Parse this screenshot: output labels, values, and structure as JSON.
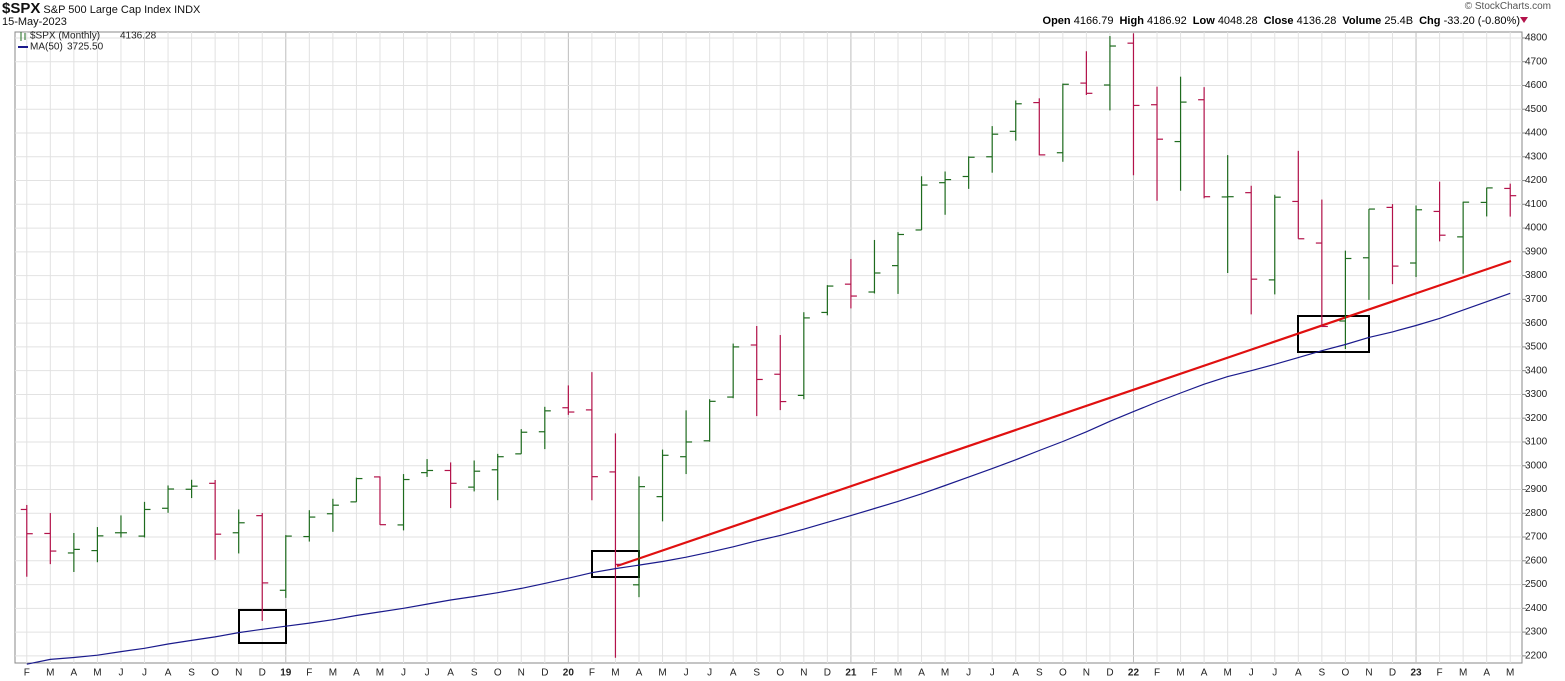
{
  "header": {
    "symbol": "$SPX",
    "name": "S&P 500 Large Cap Index",
    "exchange": "INDX",
    "date": "15-May-2023",
    "credit": "© StockCharts.com",
    "quote": [
      {
        "label": "Open",
        "value": "4166.79"
      },
      {
        "label": "High",
        "value": "4186.92"
      },
      {
        "label": "Low",
        "value": "4048.28"
      },
      {
        "label": "Close",
        "value": "4136.28"
      },
      {
        "label": "Volume",
        "value": "25.4B"
      },
      {
        "label": "Chg",
        "value": "-33.20 (-0.80%)"
      }
    ]
  },
  "chart_data": {
    "type": "ohlc",
    "categories": [
      "F",
      "M",
      "A",
      "M",
      "J",
      "J",
      "A",
      "S",
      "O",
      "N",
      "D",
      "19",
      "F",
      "M",
      "A",
      "M",
      "J",
      "J",
      "A",
      "S",
      "O",
      "N",
      "D",
      "20",
      "F",
      "M",
      "A",
      "M",
      "J",
      "J",
      "A",
      "S",
      "O",
      "N",
      "D",
      "21",
      "F",
      "M",
      "A",
      "M",
      "J",
      "J",
      "A",
      "S",
      "O",
      "N",
      "D",
      "22",
      "F",
      "M",
      "A",
      "M",
      "J",
      "J",
      "A",
      "S",
      "O",
      "N",
      "D",
      "23",
      "F",
      "M",
      "A",
      "M"
    ],
    "series": [
      {
        "name": "$SPX (Monthly)",
        "legend_value": "4136.28",
        "up_color": "#1e6b1e",
        "down_color": "#b3124a",
        "open": [
          2816,
          2715,
          2633,
          2643,
          2718,
          2704,
          2821,
          2901,
          2926,
          2718,
          2790,
          2476,
          2702,
          2798,
          2848,
          2953,
          2751,
          2971,
          2980,
          2910,
          2983,
          3050,
          3143,
          3244,
          3235,
          2974,
          2499,
          2870,
          3038,
          3105,
          3289,
          3508,
          3385,
          3296,
          3645,
          3764,
          3731,
          3842,
          3992,
          4191,
          4217,
          4300,
          4407,
          4528,
          4317,
          4610,
          4602,
          4778,
          4519,
          4364,
          4540,
          4131,
          4149,
          3782,
          4112,
          3937,
          3609,
          3875,
          4087,
          3853,
          4070,
          3963,
          4108,
          4166.79
        ],
        "high": [
          2835,
          2801,
          2717,
          2742,
          2791,
          2848,
          2917,
          2941,
          2940,
          2816,
          2801,
          2708,
          2813,
          2861,
          2950,
          2955,
          2965,
          3028,
          3014,
          3022,
          3050,
          3154,
          3248,
          3338,
          3394,
          3136,
          2955,
          3068,
          3233,
          3280,
          3514,
          3588,
          3550,
          3646,
          3760,
          3870,
          3950,
          3983,
          4218,
          4238,
          4302,
          4429,
          4537,
          4546,
          4608,
          4744,
          4808,
          4819,
          4595,
          4637,
          4593,
          4307,
          4178,
          4140,
          4325,
          4120,
          3905,
          4080,
          4101,
          4095,
          4195,
          4111,
          4170,
          4186.92
        ],
        "low": [
          2533,
          2586,
          2553,
          2594,
          2698,
          2698,
          2802,
          2864,
          2604,
          2631,
          2347,
          2444,
          2681,
          2722,
          2848,
          2751,
          2728,
          2953,
          2822,
          2892,
          2855,
          3050,
          3070,
          3214,
          2855,
          2192,
          2447,
          2766,
          2965,
          3101,
          3284,
          3209,
          3234,
          3280,
          3633,
          3662,
          3725,
          3723,
          3992,
          4056,
          4165,
          4233,
          4368,
          4306,
          4279,
          4560,
          4495,
          4222,
          4115,
          4157,
          4125,
          3811,
          3637,
          3721,
          3955,
          3584,
          3491,
          3698,
          3764,
          3794,
          3944,
          3808,
          4049,
          4048.28
        ],
        "close": [
          2714,
          2641,
          2648,
          2705,
          2718,
          2816,
          2902,
          2914,
          2712,
          2760,
          2507,
          2704,
          2784,
          2834,
          2946,
          2752,
          2942,
          2980,
          2926,
          2977,
          3038,
          3141,
          3231,
          3226,
          2954,
          2585,
          2912,
          3044,
          3100,
          3271,
          3500,
          3363,
          3270,
          3622,
          3756,
          3714,
          3811,
          3973,
          4181,
          4204,
          4298,
          4395,
          4523,
          4308,
          4605,
          4567,
          4766,
          4516,
          4374,
          4530,
          4132,
          4132,
          3785,
          4130,
          3955,
          3586,
          3872,
          4080,
          3840,
          4077,
          3970,
          4109,
          4169,
          4136.28
        ]
      },
      {
        "name": "MA(50)",
        "legend_value": "3725.50",
        "color": "#1a1a8c",
        "values": [
          2165,
          2185,
          2193,
          2203,
          2218,
          2232,
          2250,
          2265,
          2280,
          2298,
          2312,
          2325,
          2338,
          2352,
          2370,
          2385,
          2400,
          2418,
          2435,
          2450,
          2466,
          2484,
          2505,
          2527,
          2550,
          2567,
          2582,
          2597,
          2615,
          2636,
          2659,
          2684,
          2707,
          2733,
          2762,
          2790,
          2820,
          2850,
          2882,
          2917,
          2952,
          2988,
          3025,
          3064,
          3102,
          3143,
          3187,
          3228,
          3268,
          3306,
          3343,
          3375,
          3400,
          3427,
          3455,
          3484,
          3510,
          3540,
          3563,
          3590,
          3620,
          3655,
          3690,
          3725.5
        ]
      }
    ],
    "ylim": [
      2170,
      4825
    ],
    "yticks": [
      2200,
      2300,
      2400,
      2500,
      2600,
      2700,
      2800,
      2900,
      3000,
      3100,
      3200,
      3300,
      3400,
      3500,
      3600,
      3700,
      3800,
      3900,
      4000,
      4100,
      4200,
      4300,
      4400,
      4500,
      4600,
      4700,
      4800
    ],
    "grid": true
  }
}
